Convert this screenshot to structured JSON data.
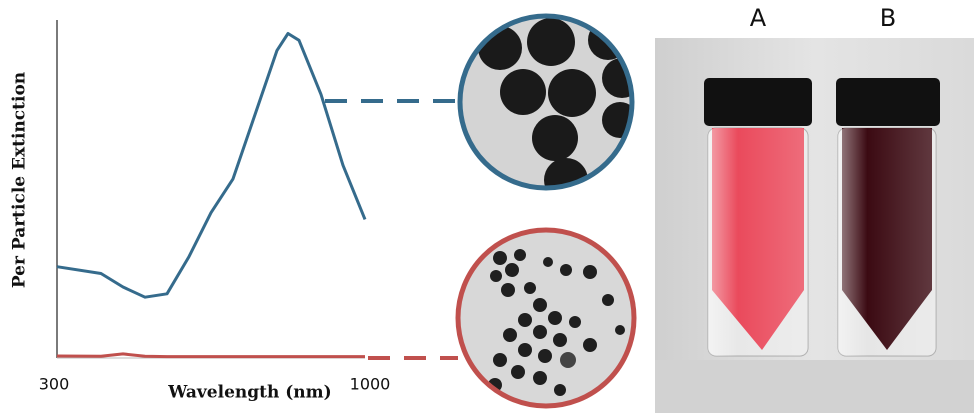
{
  "chart_data": {
    "type": "line",
    "xlabel": "Wavelength (nm)",
    "ylabel": "Per Particle Extinction",
    "x": [
      300,
      400,
      450,
      500,
      550,
      600,
      650,
      700,
      750,
      800,
      825,
      850,
      900,
      950,
      1000
    ],
    "series": [
      {
        "color": "#356b8c",
        "values": [
          0.27,
          0.25,
          0.21,
          0.18,
          0.19,
          0.3,
          0.43,
          0.53,
          0.72,
          0.91,
          0.96,
          0.94,
          0.78,
          0.57,
          0.41
        ]
      },
      {
        "color": "#c0504d",
        "values": [
          0.006,
          0.005,
          0.012,
          0.005,
          0.004,
          0.004,
          0.004,
          0.004,
          0.004,
          0.004,
          0.004,
          0.004,
          0.004,
          0.004,
          0.004
        ]
      }
    ],
    "xlim": [
      300,
      1000
    ],
    "xticks": [
      300,
      1000
    ],
    "ylim": [
      0,
      1
    ]
  },
  "photo": {
    "labels": [
      "A",
      "B"
    ]
  }
}
